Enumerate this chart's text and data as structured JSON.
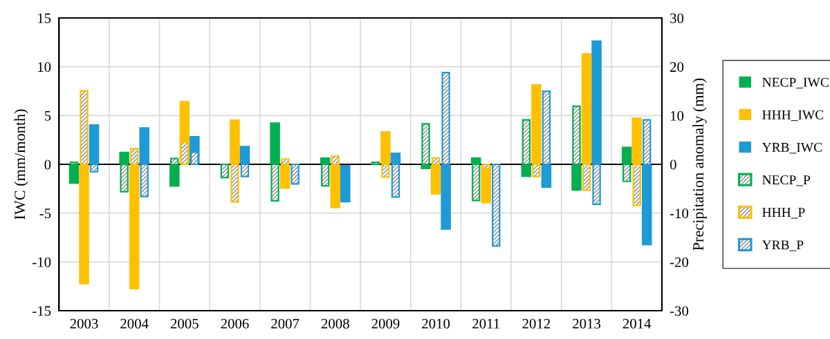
{
  "chart_data": {
    "type": "bar",
    "ylabel": "IWC (mm/month)",
    "y2label": "Precipitation anomaly (mm)",
    "categories": [
      "2003",
      "2004",
      "2005",
      "2006",
      "2007",
      "2008",
      "2009",
      "2010",
      "2011",
      "2012",
      "2013",
      "2014"
    ],
    "series": [
      {
        "name": "NECP_IWC",
        "color": "#00b050",
        "values": [
          -2.0,
          1.3,
          -2.3,
          null,
          4.3,
          0.7,
          null,
          -0.5,
          0.7,
          -1.3,
          -2.7,
          1.8
        ]
      },
      {
        "name": "HHH_IWC",
        "color": "#ffc000",
        "values": [
          -12.3,
          -12.8,
          6.5,
          4.6,
          -2.5,
          -4.5,
          3.4,
          -3.1,
          -4.0,
          8.2,
          11.4,
          4.8
        ]
      },
      {
        "name": "YRB_IWC",
        "color": "#1e9ad6",
        "values": [
          4.1,
          3.8,
          2.9,
          1.9,
          null,
          -3.9,
          1.2,
          -6.7,
          null,
          -2.4,
          12.7,
          -8.3
        ]
      },
      {
        "name": "NECP_P",
        "color": "#00b050",
        "axis": "y2",
        "values": [
          0.4,
          -5.6,
          1.2,
          -2.7,
          -7.5,
          -4.4,
          0.4,
          8.3,
          -7.4,
          9.1,
          11.9,
          -3.5
        ]
      },
      {
        "name": "HHH_P",
        "color": "#ffc000",
        "axis": "y2",
        "values": [
          15.1,
          3.2,
          4.5,
          -7.7,
          1.1,
          1.7,
          -2.6,
          1.3,
          -0.9,
          -2.5,
          -5.3,
          -8.4
        ]
      },
      {
        "name": "YRB_P",
        "color": "#1e9ad6",
        "axis": "y2",
        "values": [
          -1.5,
          -6.6,
          2.5,
          -2.5,
          -4.0,
          null,
          -6.7,
          18.8,
          -16.7,
          15.0,
          -8.2,
          9.1
        ]
      }
    ],
    "ylim": [
      -15,
      15
    ],
    "yticks": [
      -15,
      -10,
      -5,
      0,
      5,
      10,
      15
    ],
    "y2lim": [
      -30,
      30
    ],
    "y2ticks": [
      -30,
      -20,
      -10,
      0,
      10,
      20,
      30
    ],
    "grid": true,
    "legend": "right"
  }
}
